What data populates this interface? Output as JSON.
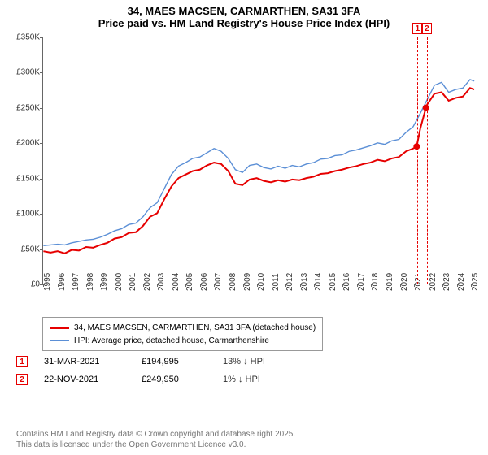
{
  "title": {
    "line1": "34, MAES MACSEN, CARMARTHEN, SA31 3FA",
    "line2": "Price paid vs. HM Land Registry's House Price Index (HPI)"
  },
  "chart": {
    "type": "line",
    "background_color": "#ffffff",
    "axis_color": "#666666",
    "label_fontsize": 10,
    "ylim": [
      0,
      350000
    ],
    "ytick_step": 50000,
    "yticks": [
      "£0",
      "£50K",
      "£100K",
      "£150K",
      "£200K",
      "£250K",
      "£300K",
      "£350K"
    ],
    "xrange": [
      1995,
      2025.5
    ],
    "xticks": [
      1995,
      1996,
      1997,
      1998,
      1999,
      2000,
      2001,
      2002,
      2003,
      2004,
      2005,
      2006,
      2007,
      2008,
      2009,
      2010,
      2011,
      2012,
      2013,
      2014,
      2015,
      2016,
      2017,
      2018,
      2019,
      2020,
      2021,
      2022,
      2023,
      2024,
      2025
    ],
    "series": [
      {
        "name": "price_paid",
        "label": "34, MAES MACSEN, CARMARTHEN, SA31 3FA (detached house)",
        "color": "#e60000",
        "line_width": 2,
        "data": [
          [
            1995,
            46000
          ],
          [
            1995.5,
            44000
          ],
          [
            1996,
            46000
          ],
          [
            1996.5,
            43000
          ],
          [
            1997,
            48000
          ],
          [
            1997.5,
            47000
          ],
          [
            1998,
            52000
          ],
          [
            1998.5,
            51000
          ],
          [
            1999,
            55000
          ],
          [
            1999.5,
            58000
          ],
          [
            2000,
            64000
          ],
          [
            2000.5,
            66000
          ],
          [
            2001,
            72000
          ],
          [
            2001.5,
            73000
          ],
          [
            2002,
            82000
          ],
          [
            2002.5,
            95000
          ],
          [
            2003,
            100000
          ],
          [
            2003.5,
            120000
          ],
          [
            2004,
            138000
          ],
          [
            2004.5,
            150000
          ],
          [
            2005,
            155000
          ],
          [
            2005.5,
            160000
          ],
          [
            2006,
            162000
          ],
          [
            2006.5,
            168000
          ],
          [
            2007,
            172000
          ],
          [
            2007.5,
            170000
          ],
          [
            2008,
            160000
          ],
          [
            2008.5,
            142000
          ],
          [
            2009,
            140000
          ],
          [
            2009.5,
            148000
          ],
          [
            2010,
            150000
          ],
          [
            2010.5,
            146000
          ],
          [
            2011,
            144000
          ],
          [
            2011.5,
            147000
          ],
          [
            2012,
            145000
          ],
          [
            2012.5,
            148000
          ],
          [
            2013,
            147000
          ],
          [
            2013.5,
            150000
          ],
          [
            2014,
            152000
          ],
          [
            2014.5,
            156000
          ],
          [
            2015,
            157000
          ],
          [
            2015.5,
            160000
          ],
          [
            2016,
            162000
          ],
          [
            2016.5,
            165000
          ],
          [
            2017,
            167000
          ],
          [
            2017.5,
            170000
          ],
          [
            2018,
            172000
          ],
          [
            2018.5,
            176000
          ],
          [
            2019,
            174000
          ],
          [
            2019.5,
            178000
          ],
          [
            2020,
            180000
          ],
          [
            2020.5,
            188000
          ],
          [
            2021,
            192000
          ],
          [
            2021.25,
            194995
          ],
          [
            2021.5,
            220000
          ],
          [
            2021.9,
            249950
          ],
          [
            2022,
            255000
          ],
          [
            2022.5,
            270000
          ],
          [
            2023,
            272000
          ],
          [
            2023.5,
            260000
          ],
          [
            2024,
            264000
          ],
          [
            2024.5,
            266000
          ],
          [
            2025,
            278000
          ],
          [
            2025.3,
            276000
          ]
        ],
        "sale_markers": [
          {
            "x": 2021.25,
            "y": 194995
          },
          {
            "x": 2021.9,
            "y": 249950
          }
        ]
      },
      {
        "name": "hpi",
        "label": "HPI: Average price, detached house, Carmarthenshire",
        "color": "#5b8fd6",
        "line_width": 1.4,
        "data": [
          [
            1995,
            54000
          ],
          [
            1995.5,
            55000
          ],
          [
            1996,
            56000
          ],
          [
            1996.5,
            55000
          ],
          [
            1997,
            58000
          ],
          [
            1997.5,
            60000
          ],
          [
            1998,
            62000
          ],
          [
            1998.5,
            63000
          ],
          [
            1999,
            66000
          ],
          [
            1999.5,
            70000
          ],
          [
            2000,
            75000
          ],
          [
            2000.5,
            78000
          ],
          [
            2001,
            84000
          ],
          [
            2001.5,
            86000
          ],
          [
            2002,
            95000
          ],
          [
            2002.5,
            108000
          ],
          [
            2003,
            115000
          ],
          [
            2003.5,
            135000
          ],
          [
            2004,
            155000
          ],
          [
            2004.5,
            167000
          ],
          [
            2005,
            172000
          ],
          [
            2005.5,
            178000
          ],
          [
            2006,
            180000
          ],
          [
            2006.5,
            186000
          ],
          [
            2007,
            192000
          ],
          [
            2007.5,
            188000
          ],
          [
            2008,
            178000
          ],
          [
            2008.5,
            162000
          ],
          [
            2009,
            158000
          ],
          [
            2009.5,
            168000
          ],
          [
            2010,
            170000
          ],
          [
            2010.5,
            165000
          ],
          [
            2011,
            163000
          ],
          [
            2011.5,
            167000
          ],
          [
            2012,
            164000
          ],
          [
            2012.5,
            168000
          ],
          [
            2013,
            166000
          ],
          [
            2013.5,
            170000
          ],
          [
            2014,
            172000
          ],
          [
            2014.5,
            177000
          ],
          [
            2015,
            178000
          ],
          [
            2015.5,
            182000
          ],
          [
            2016,
            183000
          ],
          [
            2016.5,
            188000
          ],
          [
            2017,
            190000
          ],
          [
            2017.5,
            193000
          ],
          [
            2018,
            196000
          ],
          [
            2018.5,
            200000
          ],
          [
            2019,
            198000
          ],
          [
            2019.5,
            203000
          ],
          [
            2020,
            205000
          ],
          [
            2020.5,
            215000
          ],
          [
            2021,
            223000
          ],
          [
            2021.5,
            242000
          ],
          [
            2022,
            262000
          ],
          [
            2022.5,
            282000
          ],
          [
            2023,
            286000
          ],
          [
            2023.5,
            272000
          ],
          [
            2024,
            276000
          ],
          [
            2024.5,
            278000
          ],
          [
            2025,
            290000
          ],
          [
            2025.3,
            288000
          ]
        ]
      }
    ],
    "callouts": [
      {
        "num": "1",
        "x": 2021.25
      },
      {
        "num": "2",
        "x": 2021.9
      }
    ]
  },
  "legend": {
    "items": [
      {
        "color": "#e60000",
        "width": 3,
        "label": "34, MAES MACSEN, CARMARTHEN, SA31 3FA (detached house)"
      },
      {
        "color": "#5b8fd6",
        "width": 2,
        "label": "HPI: Average price, detached house, Carmarthenshire"
      }
    ]
  },
  "sales": [
    {
      "num": "1",
      "date": "31-MAR-2021",
      "price": "£194,995",
      "pct": "13% ↓ HPI"
    },
    {
      "num": "2",
      "date": "22-NOV-2021",
      "price": "£249,950",
      "pct": "1% ↓ HPI"
    }
  ],
  "footer": {
    "line1": "Contains HM Land Registry data © Crown copyright and database right 2025.",
    "line2": "This data is licensed under the Open Government Licence v3.0."
  }
}
